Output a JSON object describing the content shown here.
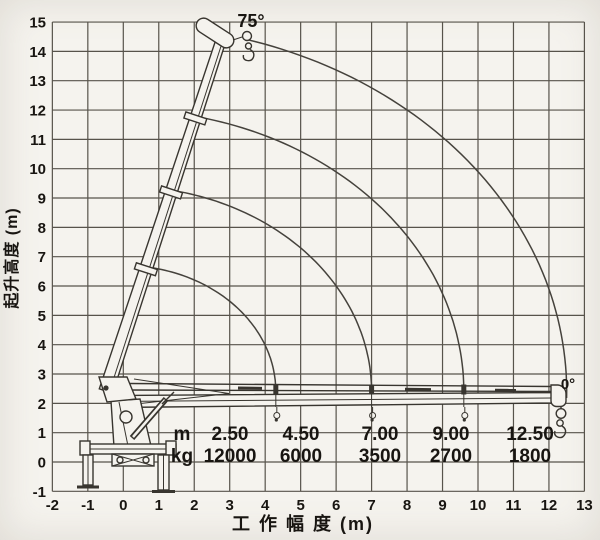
{
  "chart_data": {
    "type": "line",
    "title": "",
    "xlabel": "工 作 幅 度 (m)",
    "ylabel": "起升高度 (m)",
    "xlim": [
      -2,
      13
    ],
    "ylim": [
      -1,
      15
    ],
    "x_ticks": [
      -2,
      -1,
      0,
      1,
      2,
      3,
      4,
      5,
      6,
      7,
      8,
      9,
      10,
      11,
      12,
      13
    ],
    "y_ticks": [
      -1,
      0,
      1,
      2,
      3,
      4,
      5,
      6,
      7,
      8,
      9,
      10,
      11,
      12,
      13,
      14,
      15
    ],
    "grid": "on",
    "legend": "none",
    "annotations": {
      "max_angle_label": "75°",
      "min_angle_label": "0°"
    },
    "crane": {
      "pivot_m": {
        "x": 0,
        "y": 2.4
      },
      "max_boom_angle_deg": 75,
      "min_boom_angle_deg": 0,
      "section_reach_m": [
        4.3,
        7.0,
        9.6,
        12.5
      ]
    },
    "load_table": {
      "row_labels": [
        "m",
        "kg"
      ],
      "columns": [
        {
          "radius": "2.50",
          "load": "12000"
        },
        {
          "radius": "4.50",
          "load": "6000"
        },
        {
          "radius": "7.00",
          "load": "3500"
        },
        {
          "radius": "9.00",
          "load": "2700"
        },
        {
          "radius": "12.50",
          "load": "1800"
        }
      ]
    },
    "ink_color": "#38352f",
    "grid_color": "#57534b",
    "paper_color": "#f5f3ee"
  }
}
